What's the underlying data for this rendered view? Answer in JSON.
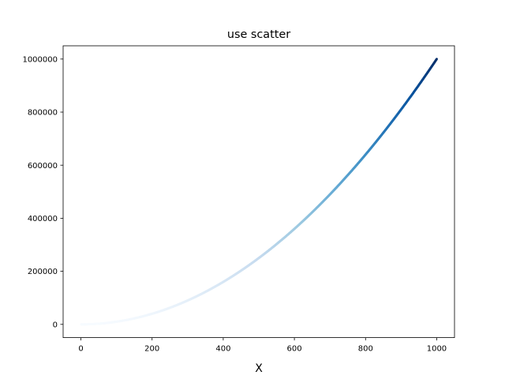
{
  "chart_data": {
    "type": "scatter",
    "title": "use scatter",
    "xlabel": "X",
    "ylabel": "",
    "xlim": [
      -50,
      1050
    ],
    "ylim": [
      -50000,
      1050000
    ],
    "xticks": [
      0,
      200,
      400,
      600,
      800,
      1000
    ],
    "xtick_labels": [
      "0",
      "200",
      "400",
      "600",
      "800",
      "1000"
    ],
    "yticks": [
      0,
      200000,
      400000,
      600000,
      800000,
      1000000
    ],
    "ytick_labels": [
      "0",
      "200000",
      "400000",
      "600000",
      "800000",
      "1000000"
    ],
    "grid": false,
    "legend": "none",
    "colormap": "Blues",
    "color_by": "y",
    "series": [
      {
        "x_start": 1,
        "x_end": 1000,
        "x_step": 1,
        "formula": "y = x^2",
        "sample_points": [
          {
            "x": 0,
            "y": 0
          },
          {
            "x": 200,
            "y": 40000
          },
          {
            "x": 400,
            "y": 160000
          },
          {
            "x": 500,
            "y": 250000
          },
          {
            "x": 600,
            "y": 360000
          },
          {
            "x": 800,
            "y": 640000
          },
          {
            "x": 1000,
            "y": 1000000
          }
        ]
      }
    ]
  }
}
